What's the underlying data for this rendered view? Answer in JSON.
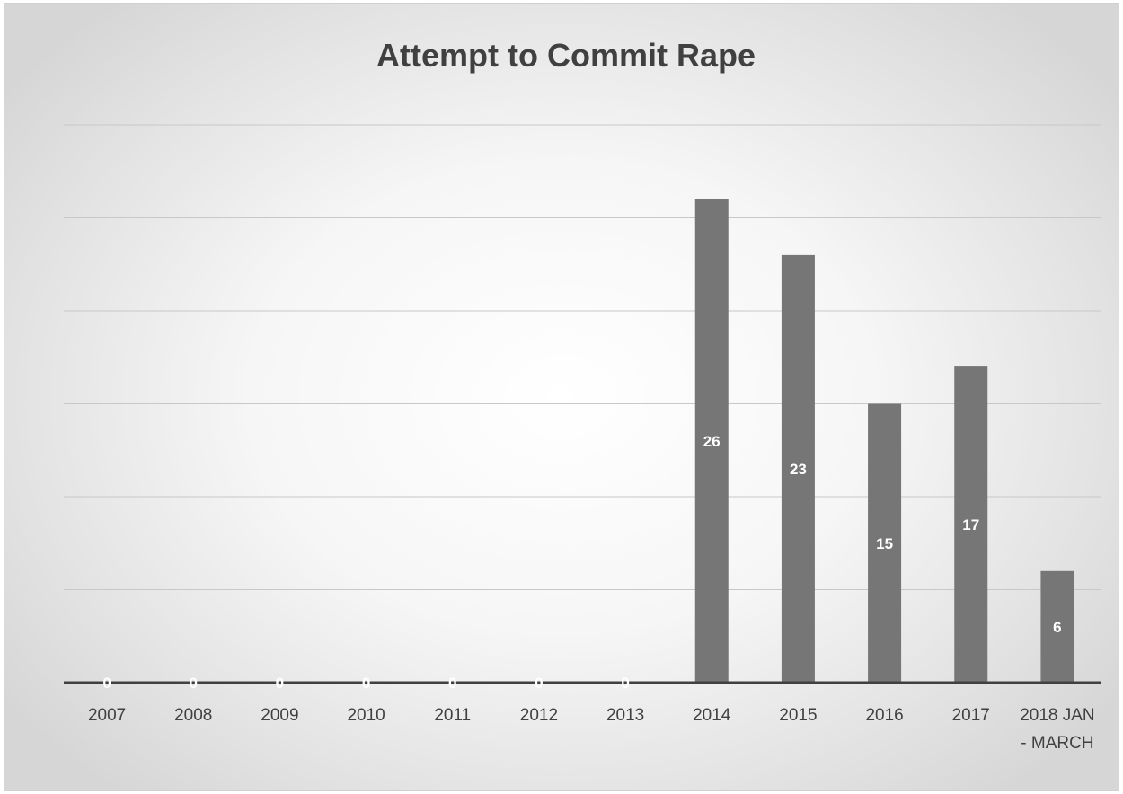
{
  "chart_data": {
    "type": "bar",
    "title": "Attempt to Commit Rape",
    "xlabel": "",
    "ylabel": "",
    "categories": [
      "2007",
      "2008",
      "2009",
      "2010",
      "2011",
      "2012",
      "2013",
      "2014",
      "2015",
      "2016",
      "2017",
      "2018 JAN - MARCH"
    ],
    "values": [
      0,
      0,
      0,
      0,
      0,
      0,
      0,
      26,
      23,
      15,
      17,
      6
    ],
    "data_labels": [
      "0",
      "0",
      "0",
      "0",
      "0",
      "0",
      "0",
      "26",
      "23",
      "15",
      "17",
      "6"
    ],
    "ylim": [
      0,
      30
    ],
    "gridlines": [
      0,
      5,
      10,
      15,
      20,
      25,
      30
    ],
    "grid": true,
    "legend": "none",
    "colors": {
      "bar": "#767676",
      "axis": "#404040",
      "grid": "#c8c8c8",
      "title": "#404040",
      "label": "#ffffff"
    }
  }
}
